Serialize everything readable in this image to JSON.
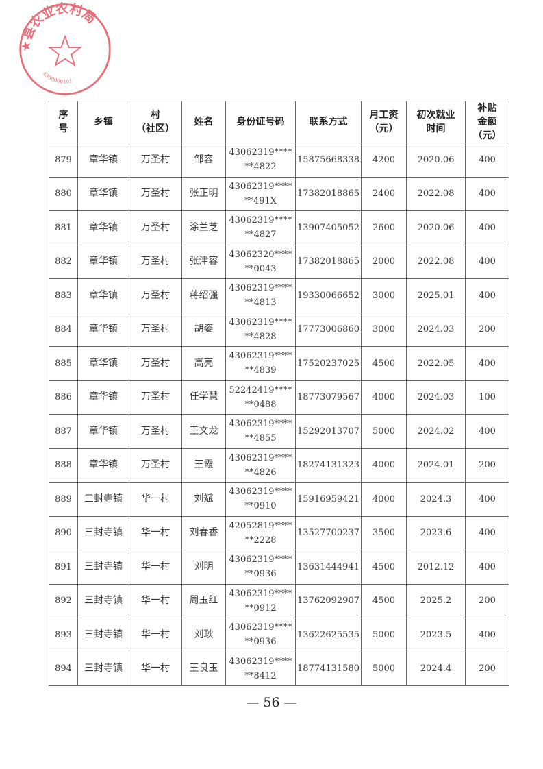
{
  "seal": {
    "text": "县农业农村局",
    "code": "4300000101",
    "color": "#e0404f"
  },
  "table": {
    "headers": [
      "序\n号",
      "乡镇",
      "村\n（社区）",
      "姓名",
      "身份证号码",
      "联系方式",
      "月工资\n（元）",
      "初次就业\n时间",
      "补贴\n金额\n（元）"
    ],
    "rows": [
      [
        "879",
        "章华镇",
        "万圣村",
        "邹容",
        "43062319****\n**4822",
        "15875668338",
        "4200",
        "2020.06",
        "400"
      ],
      [
        "880",
        "章华镇",
        "万圣村",
        "张正明",
        "43062319****\n**491X",
        "17382018865",
        "2400",
        "2022.08",
        "400"
      ],
      [
        "881",
        "章华镇",
        "万圣村",
        "涂兰芝",
        "43062319****\n**4827",
        "13907405052",
        "2600",
        "2020.06",
        "400"
      ],
      [
        "882",
        "章华镇",
        "万圣村",
        "张津容",
        "43062320****\n**0043",
        "17382018865",
        "2000",
        "2022.08",
        "400"
      ],
      [
        "883",
        "章华镇",
        "万圣村",
        "蒋绍强",
        "43062319****\n**4813",
        "19330066652",
        "3000",
        "2025.01",
        "400"
      ],
      [
        "884",
        "章华镇",
        "万圣村",
        "胡姿",
        "43062319****\n**4828",
        "17773006860",
        "3000",
        "2024.03",
        "200"
      ],
      [
        "885",
        "章华镇",
        "万圣村",
        "高亮",
        "43062319****\n**4839",
        "17520237025",
        "4500",
        "2022.05",
        "400"
      ],
      [
        "886",
        "章华镇",
        "万圣村",
        "任学慧",
        "52242419****\n**0488",
        "18773079567",
        "4000",
        "2024.03",
        "100"
      ],
      [
        "887",
        "章华镇",
        "万圣村",
        "王文龙",
        "43062319****\n**4855",
        "15292013707",
        "5000",
        "2024.02",
        "400"
      ],
      [
        "888",
        "章华镇",
        "万圣村",
        "王霞",
        "43062319****\n**4826",
        "18274131323",
        "4000",
        "2024.01",
        "200"
      ],
      [
        "889",
        "三封寺镇",
        "华一村",
        "刘斌",
        "43062319****\n**0910",
        "15916959421",
        "4000",
        "2024.3",
        "400"
      ],
      [
        "890",
        "三封寺镇",
        "华一村",
        "刘春香",
        "42052819****\n**2228",
        "13527700237",
        "3500",
        "2023.6",
        "400"
      ],
      [
        "891",
        "三封寺镇",
        "华一村",
        "刘明",
        "43062319****\n**0936",
        "13631444941",
        "4500",
        "2012.12",
        "400"
      ],
      [
        "892",
        "三封寺镇",
        "华一村",
        "周玉红",
        "43062319****\n**0912",
        "13762092907",
        "4500",
        "2025.2",
        "200"
      ],
      [
        "893",
        "三封寺镇",
        "华一村",
        "刘耿",
        "43062319****\n**0936",
        "13622625535",
        "5000",
        "2023.5",
        "400"
      ],
      [
        "894",
        "三封寺镇",
        "华一村",
        "王良玉",
        "43062319****\n**8412",
        "18774131580",
        "5000",
        "2024.4",
        "200"
      ]
    ]
  },
  "page_number": "— 56 —"
}
